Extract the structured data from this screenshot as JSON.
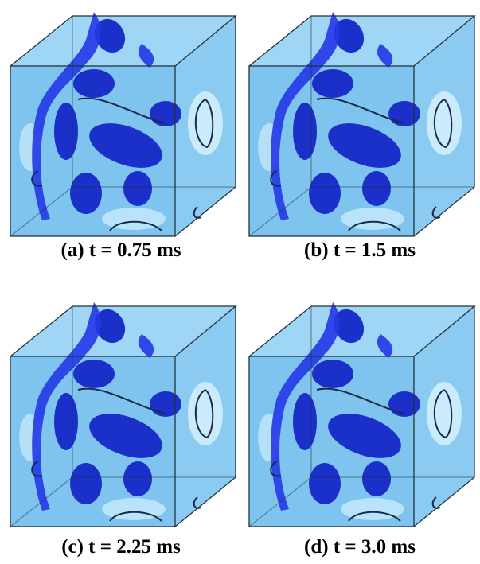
{
  "panels": [
    {
      "caption": "(a) t = 0.75 ms"
    },
    {
      "caption": "(b) t = 1.5 ms"
    },
    {
      "caption": "(c) t = 2.25 ms"
    },
    {
      "caption": "(d) t = 3.0 ms"
    }
  ]
}
